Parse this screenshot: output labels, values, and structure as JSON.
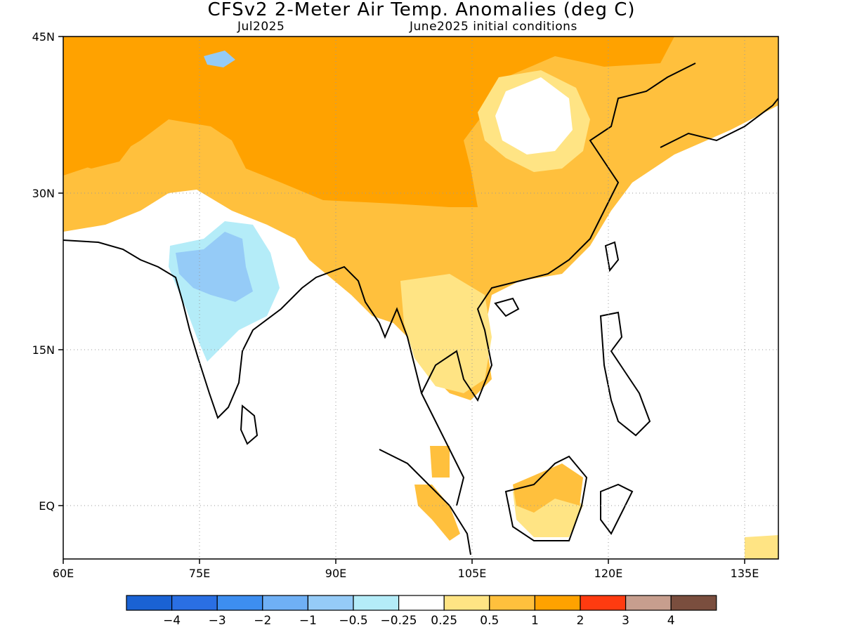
{
  "header": {
    "title": "CFSv2 2-Meter Air Temp. Anomalies (deg C)",
    "subtitle_left": "Jul2025",
    "subtitle_right": "June2025 initial conditions"
  },
  "axes": {
    "lon_ticks": [
      "60E",
      "75E",
      "90E",
      "105E",
      "120E",
      "135E"
    ],
    "lat_ticks": [
      "45N",
      "30N",
      "15N",
      "EQ"
    ]
  },
  "colorbar": {
    "colors": [
      "#1a62d4",
      "#2a6fe3",
      "#3d8ef0",
      "#6fb0f5",
      "#95cbf7",
      "#b4ecf8",
      "#ffffff",
      "#ffe484",
      "#ffc03d",
      "#ffa200",
      "#ff3b10",
      "#c79e8e",
      "#7a4e3e"
    ],
    "labels": [
      "-4",
      "-3",
      "-2",
      "-1",
      "-0.5",
      "-0.25",
      "0.25",
      "0.5",
      "1",
      "2",
      "3",
      "4"
    ]
  },
  "legend_colors": {
    "very_light_blue": "#b4ecf8",
    "light_blue": "#95cbf7",
    "light_yellow": "#ffe484",
    "light_orange": "#ffc03d",
    "orange": "#ffa200"
  }
}
